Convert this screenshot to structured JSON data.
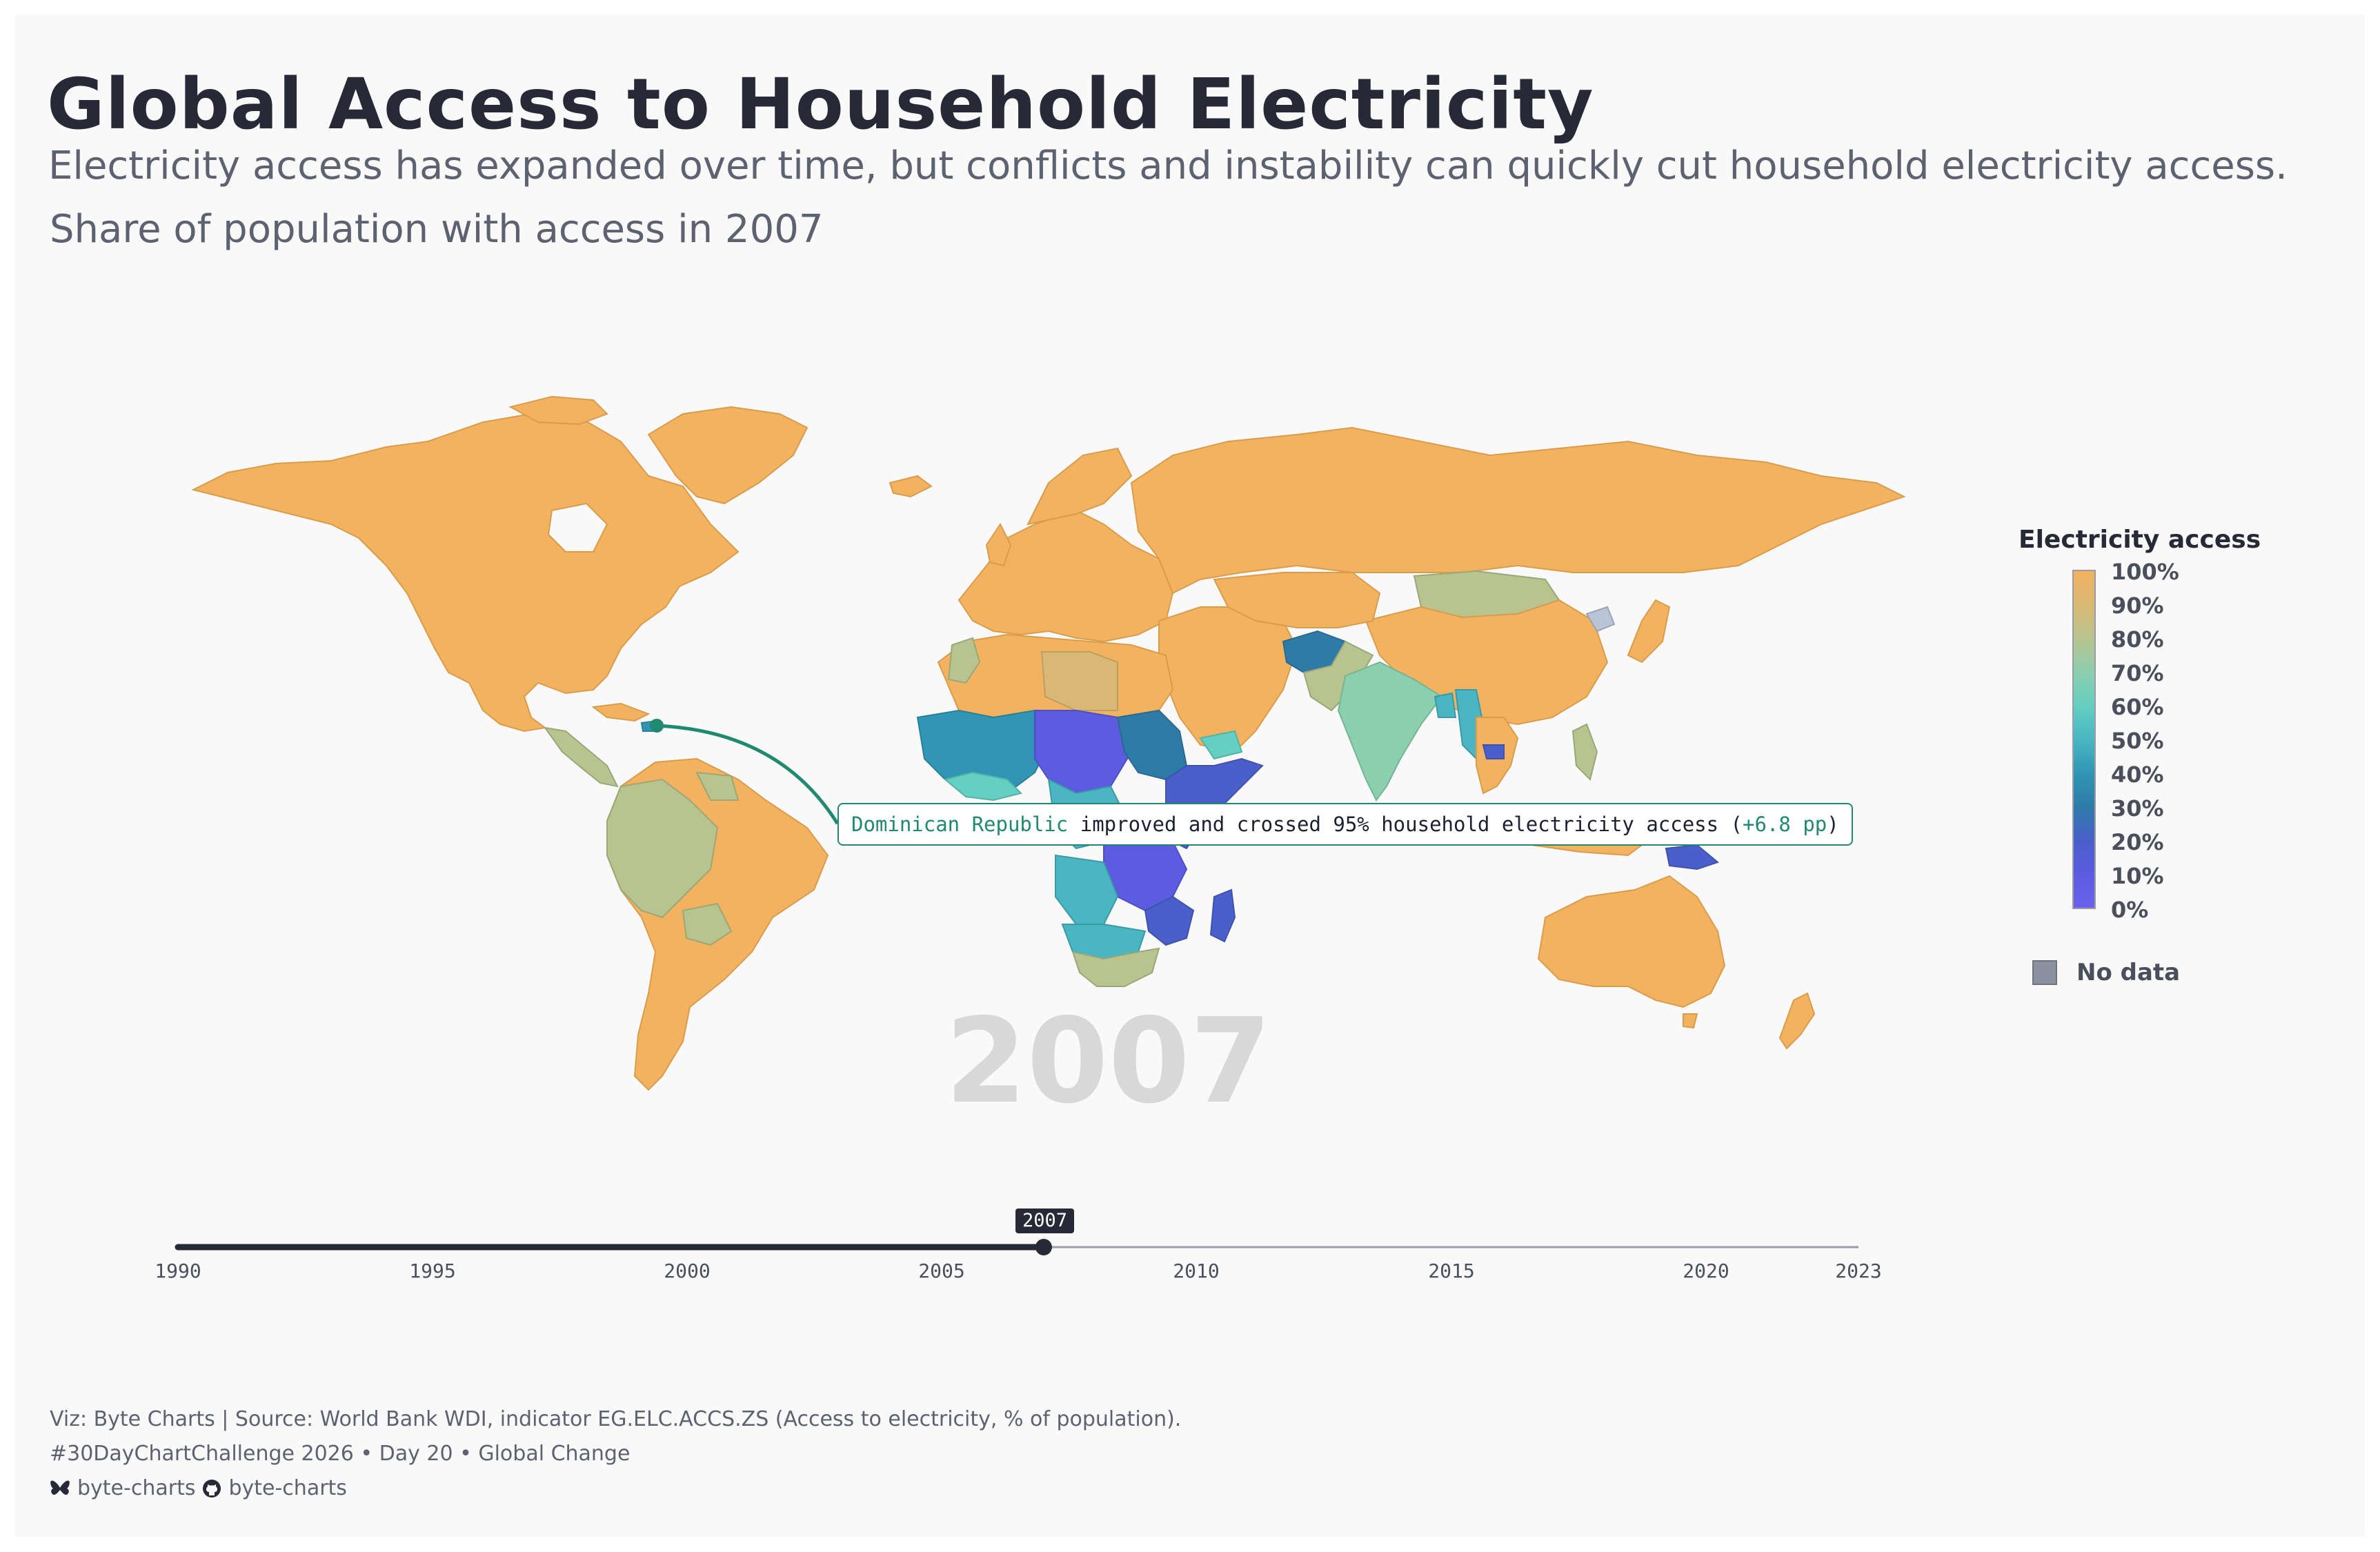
{
  "title": "Global Access to Household Electricity",
  "subtitle": "Electricity access has expanded over time, but conflicts and instability can quickly cut household electricity access.",
  "period_label": "Share of population with access in 2007",
  "big_year": "2007",
  "callout": {
    "country": "Dominican Republic",
    "text": " improved and crossed 95% household electricity access (",
    "delta": "+6.8 pp",
    "close": ")"
  },
  "legend": {
    "title": "Electricity access",
    "ticks": [
      "100%",
      "90%",
      "80%",
      "70%",
      "60%",
      "50%",
      "40%",
      "30%",
      "20%",
      "10%",
      "0%"
    ],
    "no_data_label": "No data",
    "colors": {
      "high": "#f3b25f",
      "mid_high": "#b9c38e",
      "mid": "#64cfc2",
      "mid_low": "#3196b5",
      "low": "#6b61ec",
      "no_data": "#8b919e"
    }
  },
  "slider": {
    "current": 2007,
    "min": 1990,
    "max": 2023,
    "current_label": "2007",
    "ticks": [
      "1990",
      "1995",
      "2000",
      "2005",
      "2010",
      "2015",
      "2020",
      "2023"
    ]
  },
  "footer": {
    "line1": "Viz: Byte Charts | Source: World Bank WDI, indicator EG.ELC.ACCS.ZS (Access to electricity, % of population).",
    "line2": "#30DayChartChallenge 2026 • Day 20 • Global Change",
    "bluesky": "byte-charts",
    "github": "byte-charts"
  }
}
